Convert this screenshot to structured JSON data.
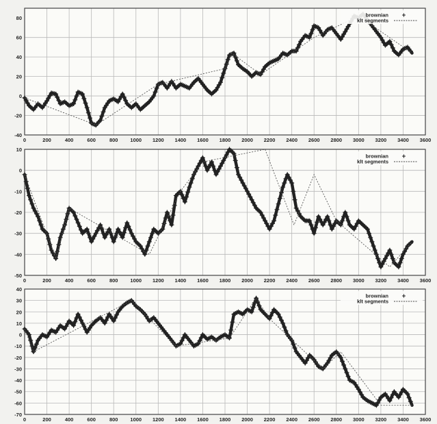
{
  "chart_data": [
    {
      "type": "line",
      "xlim": [
        0,
        3600
      ],
      "ylim": [
        -40,
        90
      ],
      "xticks": [
        0,
        200,
        400,
        600,
        800,
        1000,
        1200,
        1400,
        1600,
        1800,
        2000,
        2200,
        2400,
        2600,
        2800,
        3000,
        3200,
        3400,
        3600
      ],
      "yticks": [
        -40,
        -20,
        0,
        20,
        40,
        60,
        80
      ],
      "grid": true,
      "legend_position": "top-right",
      "colors": {
        "line": "#222222",
        "grid": "#b8b8b8",
        "frame": "#444444"
      },
      "series": [
        {
          "name": "brownian",
          "marker": "plus",
          "x": [
            0,
            40,
            80,
            120,
            160,
            200,
            240,
            280,
            320,
            360,
            400,
            440,
            480,
            520,
            560,
            600,
            640,
            680,
            720,
            760,
            800,
            840,
            880,
            920,
            960,
            1000,
            1040,
            1080,
            1120,
            1160,
            1200,
            1240,
            1280,
            1320,
            1360,
            1400,
            1440,
            1480,
            1520,
            1560,
            1600,
            1640,
            1680,
            1720,
            1760,
            1800,
            1840,
            1880,
            1920,
            1960,
            2000,
            2040,
            2080,
            2120,
            2160,
            2200,
            2240,
            2280,
            2320,
            2360,
            2400,
            2440,
            2480,
            2520,
            2560,
            2600,
            2640,
            2680,
            2720,
            2760,
            2800,
            2840,
            2880,
            2920,
            2960,
            3000,
            3040,
            3080,
            3120,
            3160,
            3200,
            3240,
            3280,
            3320,
            3360,
            3400,
            3440,
            3480
          ],
          "y": [
            -2,
            -10,
            -14,
            -8,
            -12,
            -5,
            3,
            2,
            -8,
            -6,
            -10,
            -8,
            4,
            2,
            -12,
            -28,
            -30,
            -25,
            -12,
            -5,
            -3,
            -6,
            2,
            -8,
            -12,
            -8,
            -14,
            -10,
            -6,
            0,
            12,
            14,
            8,
            15,
            8,
            12,
            10,
            8,
            14,
            18,
            12,
            6,
            2,
            6,
            14,
            28,
            42,
            44,
            32,
            28,
            25,
            20,
            24,
            22,
            30,
            34,
            36,
            38,
            44,
            42,
            46,
            46,
            56,
            62,
            60,
            72,
            70,
            62,
            68,
            70,
            64,
            58,
            66,
            74,
            82,
            80,
            84,
            78,
            72,
            66,
            60,
            52,
            56,
            46,
            42,
            48,
            50,
            44
          ]
        },
        {
          "name": "klt segments",
          "style": "dashed",
          "x": [
            0,
            600,
            640,
            1200,
            1800,
            1860,
            2120,
            2600,
            3000,
            3480
          ],
          "y": [
            -2,
            -28,
            -30,
            12,
            28,
            44,
            22,
            60,
            82,
            44
          ]
        }
      ]
    },
    {
      "type": "line",
      "xlim": [
        0,
        3600
      ],
      "ylim": [
        -50,
        10
      ],
      "xticks": [
        0,
        200,
        400,
        600,
        800,
        1000,
        1200,
        1400,
        1600,
        1800,
        2000,
        2200,
        2400,
        2600,
        2800,
        3000,
        3200,
        3400,
        3600
      ],
      "yticks": [
        -50,
        -40,
        -30,
        -20,
        -10,
        0,
        10
      ],
      "grid": true,
      "legend_position": "top-right",
      "colors": {
        "line": "#222222",
        "grid": "#b8b8b8",
        "frame": "#444444"
      },
      "series": [
        {
          "name": "brownian",
          "marker": "plus",
          "x": [
            0,
            40,
            80,
            120,
            160,
            200,
            240,
            280,
            320,
            360,
            400,
            440,
            480,
            520,
            560,
            600,
            640,
            680,
            720,
            760,
            800,
            840,
            880,
            920,
            960,
            1000,
            1040,
            1080,
            1120,
            1160,
            1200,
            1240,
            1280,
            1320,
            1360,
            1400,
            1440,
            1480,
            1520,
            1560,
            1600,
            1640,
            1680,
            1720,
            1760,
            1800,
            1840,
            1880,
            1920,
            1960,
            2000,
            2040,
            2080,
            2120,
            2160,
            2200,
            2240,
            2280,
            2320,
            2360,
            2400,
            2440,
            2480,
            2520,
            2560,
            2600,
            2640,
            2680,
            2720,
            2760,
            2800,
            2840,
            2880,
            2920,
            2960,
            3000,
            3040,
            3080,
            3120,
            3160,
            3200,
            3240,
            3280,
            3320,
            3360,
            3400,
            3440,
            3480
          ],
          "y": [
            -2,
            -12,
            -18,
            -22,
            -28,
            -30,
            -38,
            -42,
            -32,
            -26,
            -18,
            -20,
            -25,
            -30,
            -28,
            -34,
            -30,
            -26,
            -32,
            -28,
            -34,
            -28,
            -32,
            -25,
            -30,
            -34,
            -36,
            -40,
            -34,
            -28,
            -30,
            -28,
            -20,
            -26,
            -12,
            -10,
            -15,
            -8,
            -2,
            2,
            6,
            0,
            4,
            -2,
            2,
            6,
            10,
            8,
            -2,
            -6,
            -10,
            -14,
            -18,
            -20,
            -24,
            -28,
            -24,
            -16,
            -8,
            -2,
            -6,
            -18,
            -22,
            -24,
            -24,
            -30,
            -22,
            -26,
            -22,
            -28,
            -24,
            -26,
            -20,
            -26,
            -28,
            -24,
            -26,
            -28,
            -34,
            -40,
            -46,
            -42,
            -38,
            -44,
            -46,
            -40,
            -36,
            -34
          ]
        },
        {
          "name": "klt segments",
          "style": "dashed",
          "x": [
            0,
            280,
            400,
            1120,
            1400,
            1600,
            2160,
            2420,
            2600,
            2800,
            3280,
            3480
          ],
          "y": [
            -2,
            -42,
            -18,
            -40,
            -10,
            4,
            10,
            -26,
            -2,
            -24,
            -46,
            -34
          ]
        }
      ]
    },
    {
      "type": "line",
      "xlim": [
        0,
        3600
      ],
      "ylim": [
        -70,
        40
      ],
      "xticks": [
        0,
        200,
        400,
        600,
        800,
        1000,
        1200,
        1400,
        1600,
        1800,
        2000,
        2200,
        2400,
        2600,
        2800,
        3000,
        3200,
        3400,
        3600
      ],
      "yticks": [
        -70,
        -60,
        -50,
        -40,
        -30,
        -20,
        -10,
        0,
        10,
        20,
        30,
        40
      ],
      "grid": true,
      "legend_position": "top-right",
      "colors": {
        "line": "#222222",
        "grid": "#b8b8b8",
        "frame": "#444444"
      },
      "series": [
        {
          "name": "brownian",
          "marker": "plus",
          "x": [
            0,
            40,
            80,
            120,
            160,
            200,
            240,
            280,
            320,
            360,
            400,
            440,
            480,
            520,
            560,
            600,
            640,
            680,
            720,
            760,
            800,
            840,
            880,
            920,
            960,
            1000,
            1040,
            1080,
            1120,
            1160,
            1200,
            1240,
            1280,
            1320,
            1360,
            1400,
            1440,
            1480,
            1520,
            1560,
            1600,
            1640,
            1680,
            1720,
            1760,
            1800,
            1840,
            1880,
            1920,
            1960,
            2000,
            2040,
            2080,
            2120,
            2160,
            2200,
            2240,
            2280,
            2320,
            2360,
            2400,
            2440,
            2480,
            2520,
            2560,
            2600,
            2640,
            2680,
            2720,
            2760,
            2800,
            2840,
            2880,
            2920,
            2960,
            3000,
            3040,
            3080,
            3120,
            3160,
            3200,
            3240,
            3280,
            3320,
            3360,
            3400,
            3440,
            3480
          ],
          "y": [
            5,
            0,
            -15,
            -5,
            0,
            -2,
            4,
            2,
            8,
            5,
            12,
            8,
            18,
            10,
            2,
            8,
            12,
            15,
            10,
            18,
            12,
            20,
            25,
            28,
            30,
            25,
            22,
            18,
            12,
            15,
            10,
            5,
            0,
            -5,
            -10,
            -8,
            0,
            -5,
            -10,
            -8,
            0,
            -4,
            -2,
            -5,
            -2,
            0,
            -3,
            18,
            20,
            18,
            22,
            20,
            32,
            22,
            18,
            14,
            22,
            18,
            10,
            0,
            -5,
            -15,
            -20,
            -25,
            -18,
            -22,
            -28,
            -30,
            -25,
            -18,
            -15,
            -20,
            -30,
            -40,
            -42,
            -48,
            -55,
            -58,
            -60,
            -62,
            -55,
            -52,
            -58,
            -50,
            -55,
            -48,
            -52,
            -62
          ]
        },
        {
          "name": "klt segments",
          "style": "dashed",
          "x": [
            0,
            80,
            960,
            1360,
            1840,
            2080,
            2200,
            2680,
            2840,
            3200,
            3480
          ],
          "y": [
            5,
            -15,
            30,
            -10,
            -3,
            32,
            14,
            -30,
            -15,
            -62,
            -62
          ]
        }
      ]
    }
  ]
}
